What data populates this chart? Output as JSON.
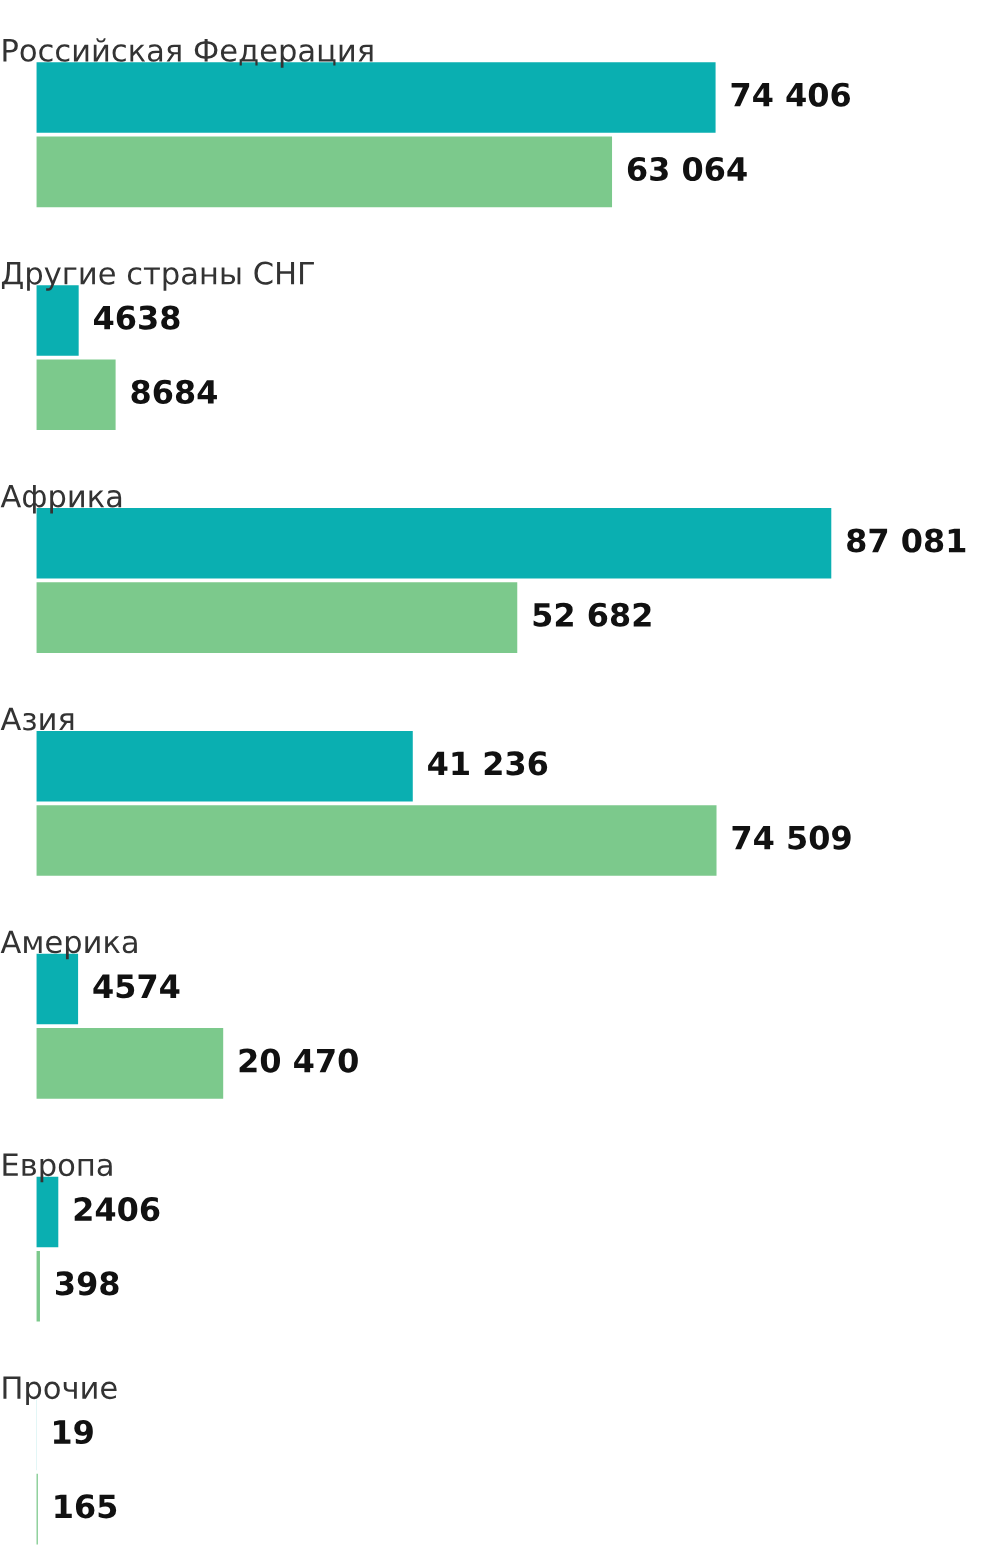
{
  "chart_data": {
    "type": "bar",
    "orientation": "horizontal",
    "categories": [
      "Российская Федерация",
      "Другие страны СНГ",
      "Африка",
      "Азия",
      "Америка",
      "Европа",
      "Прочие"
    ],
    "series": [
      {
        "color": "#0aafb1",
        "values": [
          74406,
          4638,
          87081,
          41236,
          4574,
          2406,
          19
        ],
        "value_labels": [
          "74 406",
          "4638",
          "87 081",
          "41 236",
          "4574",
          "2406",
          "19"
        ]
      },
      {
        "color": "#7cc98c",
        "values": [
          63064,
          8684,
          52682,
          74509,
          20470,
          398,
          165
        ],
        "value_labels": [
          "63 064",
          "8684",
          "52 682",
          "74 509",
          "20 470",
          "398",
          "165"
        ]
      }
    ],
    "grid": false,
    "legend": false,
    "tick_labels": false
  }
}
